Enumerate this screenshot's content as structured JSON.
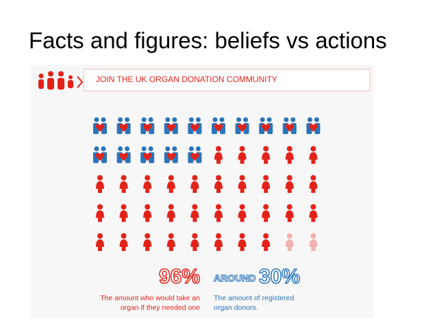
{
  "title": "Facts and figures: beliefs vs actions",
  "banner": "JOIN THE UK ORGAN DONATION COMMUNITY",
  "stats": [
    {
      "value": 96,
      "label": "96%",
      "caption": [
        "The amount who would take an",
        "organ if they needed one"
      ]
    },
    {
      "prefix": "AROUND",
      "value": 30,
      "label": "30%",
      "caption": [
        "The amount of registered",
        "organ donors."
      ]
    }
  ]
}
